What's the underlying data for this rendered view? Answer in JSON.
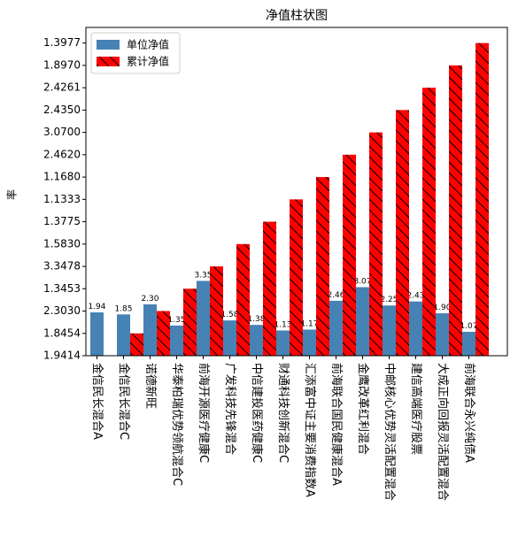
{
  "chart_data": {
    "type": "bar",
    "title": "净值柱状图",
    "ylabel": "率",
    "categories": [
      "金信民长混合A",
      "金信民长混合C",
      "诺德新旺",
      "华泰柏瑞优势领航混合C",
      "前海开源医疗健康C",
      "广发科技先锋混合",
      "中信建投医药健康C",
      "财通科技创新混合C",
      "汇添富中证主要消费指数A",
      "前海联合国民健康混合A",
      "金鹰改革红利混合",
      "中邮核心优势灵活配置混合",
      "建信高端医疗股票",
      "大成正向回报灵活配置混合",
      "前海联合永兴纯债A"
    ],
    "series": [
      {
        "name": "单位净值",
        "color": "#4682b4",
        "values": [
          1.94,
          1.85,
          2.3,
          1.35,
          3.35,
          1.58,
          1.38,
          1.13,
          1.17,
          2.46,
          3.07,
          2.25,
          2.43,
          1.9,
          1.07
        ],
        "value_labels": [
          "1.94",
          "1.85",
          "2.30",
          "1.35",
          "3.35",
          "1.58",
          "1.38",
          "1.13",
          "1.17",
          "2.46",
          "3.07",
          "2.25",
          "2.43",
          "1.90",
          "1.07"
        ]
      },
      {
        "name": "累计净值",
        "color": "#ff0000",
        "hatch": true,
        "values": [
          0,
          1,
          2,
          3,
          4,
          5,
          6,
          7,
          8,
          9,
          10,
          11,
          12,
          13,
          14
        ]
      }
    ],
    "ylim": [
      0,
      14.7
    ],
    "yticks": [
      {
        "value": 0,
        "label": "1.9414"
      },
      {
        "value": 1,
        "label": "1.8454"
      },
      {
        "value": 2,
        "label": "2.3030"
      },
      {
        "value": 3,
        "label": "1.3453"
      },
      {
        "value": 4,
        "label": "3.3478"
      },
      {
        "value": 5,
        "label": "1.5830"
      },
      {
        "value": 6,
        "label": "1.3775"
      },
      {
        "value": 7,
        "label": "1.1333"
      },
      {
        "value": 8,
        "label": "1.1680"
      },
      {
        "value": 9,
        "label": "2.4620"
      },
      {
        "value": 10,
        "label": "3.0700"
      },
      {
        "value": 11,
        "label": "2.4350"
      },
      {
        "value": 12,
        "label": "2.4261"
      },
      {
        "value": 13,
        "label": "1.8970"
      },
      {
        "value": 14,
        "label": "1.3977"
      }
    ],
    "legend": "upper left"
  }
}
